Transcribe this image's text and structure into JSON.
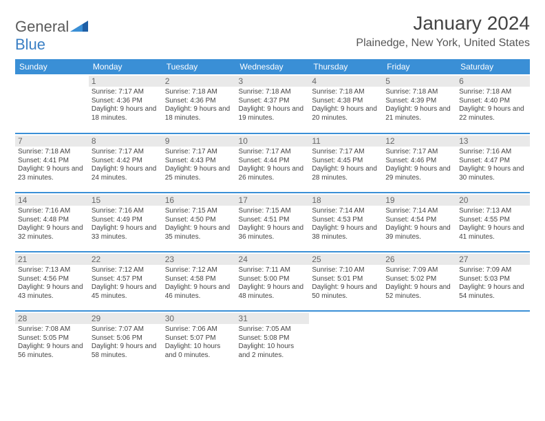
{
  "logo": {
    "text1": "General",
    "text2": "Blue"
  },
  "title": "January 2024",
  "location": "Plainedge, New York, United States",
  "colors": {
    "header_bg": "#3a8fd6",
    "header_text": "#ffffff",
    "daynum_bg": "#e9e9e9",
    "daynum_text": "#666666",
    "border": "#3a8fd6",
    "body_text": "#444444",
    "logo_gray": "#5a5a5a",
    "logo_blue": "#3a7fc4"
  },
  "typography": {
    "title_fontsize": 28,
    "location_fontsize": 16,
    "dayheader_fontsize": 12,
    "daynum_fontsize": 12,
    "cell_fontsize": 10
  },
  "day_headers": [
    "Sunday",
    "Monday",
    "Tuesday",
    "Wednesday",
    "Thursday",
    "Friday",
    "Saturday"
  ],
  "weeks": [
    [
      {
        "num": "",
        "sunrise": "",
        "sunset": "",
        "daylight": ""
      },
      {
        "num": "1",
        "sunrise": "Sunrise: 7:17 AM",
        "sunset": "Sunset: 4:36 PM",
        "daylight": "Daylight: 9 hours and 18 minutes."
      },
      {
        "num": "2",
        "sunrise": "Sunrise: 7:18 AM",
        "sunset": "Sunset: 4:36 PM",
        "daylight": "Daylight: 9 hours and 18 minutes."
      },
      {
        "num": "3",
        "sunrise": "Sunrise: 7:18 AM",
        "sunset": "Sunset: 4:37 PM",
        "daylight": "Daylight: 9 hours and 19 minutes."
      },
      {
        "num": "4",
        "sunrise": "Sunrise: 7:18 AM",
        "sunset": "Sunset: 4:38 PM",
        "daylight": "Daylight: 9 hours and 20 minutes."
      },
      {
        "num": "5",
        "sunrise": "Sunrise: 7:18 AM",
        "sunset": "Sunset: 4:39 PM",
        "daylight": "Daylight: 9 hours and 21 minutes."
      },
      {
        "num": "6",
        "sunrise": "Sunrise: 7:18 AM",
        "sunset": "Sunset: 4:40 PM",
        "daylight": "Daylight: 9 hours and 22 minutes."
      }
    ],
    [
      {
        "num": "7",
        "sunrise": "Sunrise: 7:18 AM",
        "sunset": "Sunset: 4:41 PM",
        "daylight": "Daylight: 9 hours and 23 minutes."
      },
      {
        "num": "8",
        "sunrise": "Sunrise: 7:17 AM",
        "sunset": "Sunset: 4:42 PM",
        "daylight": "Daylight: 9 hours and 24 minutes."
      },
      {
        "num": "9",
        "sunrise": "Sunrise: 7:17 AM",
        "sunset": "Sunset: 4:43 PM",
        "daylight": "Daylight: 9 hours and 25 minutes."
      },
      {
        "num": "10",
        "sunrise": "Sunrise: 7:17 AM",
        "sunset": "Sunset: 4:44 PM",
        "daylight": "Daylight: 9 hours and 26 minutes."
      },
      {
        "num": "11",
        "sunrise": "Sunrise: 7:17 AM",
        "sunset": "Sunset: 4:45 PM",
        "daylight": "Daylight: 9 hours and 28 minutes."
      },
      {
        "num": "12",
        "sunrise": "Sunrise: 7:17 AM",
        "sunset": "Sunset: 4:46 PM",
        "daylight": "Daylight: 9 hours and 29 minutes."
      },
      {
        "num": "13",
        "sunrise": "Sunrise: 7:16 AM",
        "sunset": "Sunset: 4:47 PM",
        "daylight": "Daylight: 9 hours and 30 minutes."
      }
    ],
    [
      {
        "num": "14",
        "sunrise": "Sunrise: 7:16 AM",
        "sunset": "Sunset: 4:48 PM",
        "daylight": "Daylight: 9 hours and 32 minutes."
      },
      {
        "num": "15",
        "sunrise": "Sunrise: 7:16 AM",
        "sunset": "Sunset: 4:49 PM",
        "daylight": "Daylight: 9 hours and 33 minutes."
      },
      {
        "num": "16",
        "sunrise": "Sunrise: 7:15 AM",
        "sunset": "Sunset: 4:50 PM",
        "daylight": "Daylight: 9 hours and 35 minutes."
      },
      {
        "num": "17",
        "sunrise": "Sunrise: 7:15 AM",
        "sunset": "Sunset: 4:51 PM",
        "daylight": "Daylight: 9 hours and 36 minutes."
      },
      {
        "num": "18",
        "sunrise": "Sunrise: 7:14 AM",
        "sunset": "Sunset: 4:53 PM",
        "daylight": "Daylight: 9 hours and 38 minutes."
      },
      {
        "num": "19",
        "sunrise": "Sunrise: 7:14 AM",
        "sunset": "Sunset: 4:54 PM",
        "daylight": "Daylight: 9 hours and 39 minutes."
      },
      {
        "num": "20",
        "sunrise": "Sunrise: 7:13 AM",
        "sunset": "Sunset: 4:55 PM",
        "daylight": "Daylight: 9 hours and 41 minutes."
      }
    ],
    [
      {
        "num": "21",
        "sunrise": "Sunrise: 7:13 AM",
        "sunset": "Sunset: 4:56 PM",
        "daylight": "Daylight: 9 hours and 43 minutes."
      },
      {
        "num": "22",
        "sunrise": "Sunrise: 7:12 AM",
        "sunset": "Sunset: 4:57 PM",
        "daylight": "Daylight: 9 hours and 45 minutes."
      },
      {
        "num": "23",
        "sunrise": "Sunrise: 7:12 AM",
        "sunset": "Sunset: 4:58 PM",
        "daylight": "Daylight: 9 hours and 46 minutes."
      },
      {
        "num": "24",
        "sunrise": "Sunrise: 7:11 AM",
        "sunset": "Sunset: 5:00 PM",
        "daylight": "Daylight: 9 hours and 48 minutes."
      },
      {
        "num": "25",
        "sunrise": "Sunrise: 7:10 AM",
        "sunset": "Sunset: 5:01 PM",
        "daylight": "Daylight: 9 hours and 50 minutes."
      },
      {
        "num": "26",
        "sunrise": "Sunrise: 7:09 AM",
        "sunset": "Sunset: 5:02 PM",
        "daylight": "Daylight: 9 hours and 52 minutes."
      },
      {
        "num": "27",
        "sunrise": "Sunrise: 7:09 AM",
        "sunset": "Sunset: 5:03 PM",
        "daylight": "Daylight: 9 hours and 54 minutes."
      }
    ],
    [
      {
        "num": "28",
        "sunrise": "Sunrise: 7:08 AM",
        "sunset": "Sunset: 5:05 PM",
        "daylight": "Daylight: 9 hours and 56 minutes."
      },
      {
        "num": "29",
        "sunrise": "Sunrise: 7:07 AM",
        "sunset": "Sunset: 5:06 PM",
        "daylight": "Daylight: 9 hours and 58 minutes."
      },
      {
        "num": "30",
        "sunrise": "Sunrise: 7:06 AM",
        "sunset": "Sunset: 5:07 PM",
        "daylight": "Daylight: 10 hours and 0 minutes."
      },
      {
        "num": "31",
        "sunrise": "Sunrise: 7:05 AM",
        "sunset": "Sunset: 5:08 PM",
        "daylight": "Daylight: 10 hours and 2 minutes."
      },
      {
        "num": "",
        "sunrise": "",
        "sunset": "",
        "daylight": ""
      },
      {
        "num": "",
        "sunrise": "",
        "sunset": "",
        "daylight": ""
      },
      {
        "num": "",
        "sunrise": "",
        "sunset": "",
        "daylight": ""
      }
    ]
  ]
}
